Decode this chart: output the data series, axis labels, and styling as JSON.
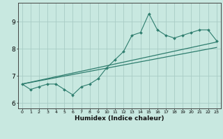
{
  "xlabel": "Humidex (Indice chaleur)",
  "x_values": [
    0,
    1,
    2,
    3,
    4,
    5,
    6,
    7,
    8,
    9,
    10,
    11,
    12,
    13,
    14,
    15,
    16,
    17,
    18,
    19,
    20,
    21,
    22,
    23
  ],
  "y_main": [
    6.7,
    6.5,
    6.6,
    6.7,
    6.7,
    6.5,
    6.3,
    6.6,
    6.7,
    6.9,
    7.3,
    7.6,
    7.9,
    8.5,
    8.6,
    9.3,
    8.7,
    8.5,
    8.4,
    8.5,
    8.6,
    8.7,
    8.7,
    8.3
  ],
  "y_line1_start": 6.7,
  "y_line1_end": 8.25,
  "y_line2_start": 6.7,
  "y_line2_end": 8.05,
  "line_color": "#2e7d6e",
  "bg_color": "#c8e8e0",
  "grid_color": "#a8ccc5",
  "ylim": [
    5.8,
    9.7
  ],
  "yticks": [
    6,
    7,
    8,
    9
  ],
  "xlim": [
    -0.5,
    23.5
  ]
}
